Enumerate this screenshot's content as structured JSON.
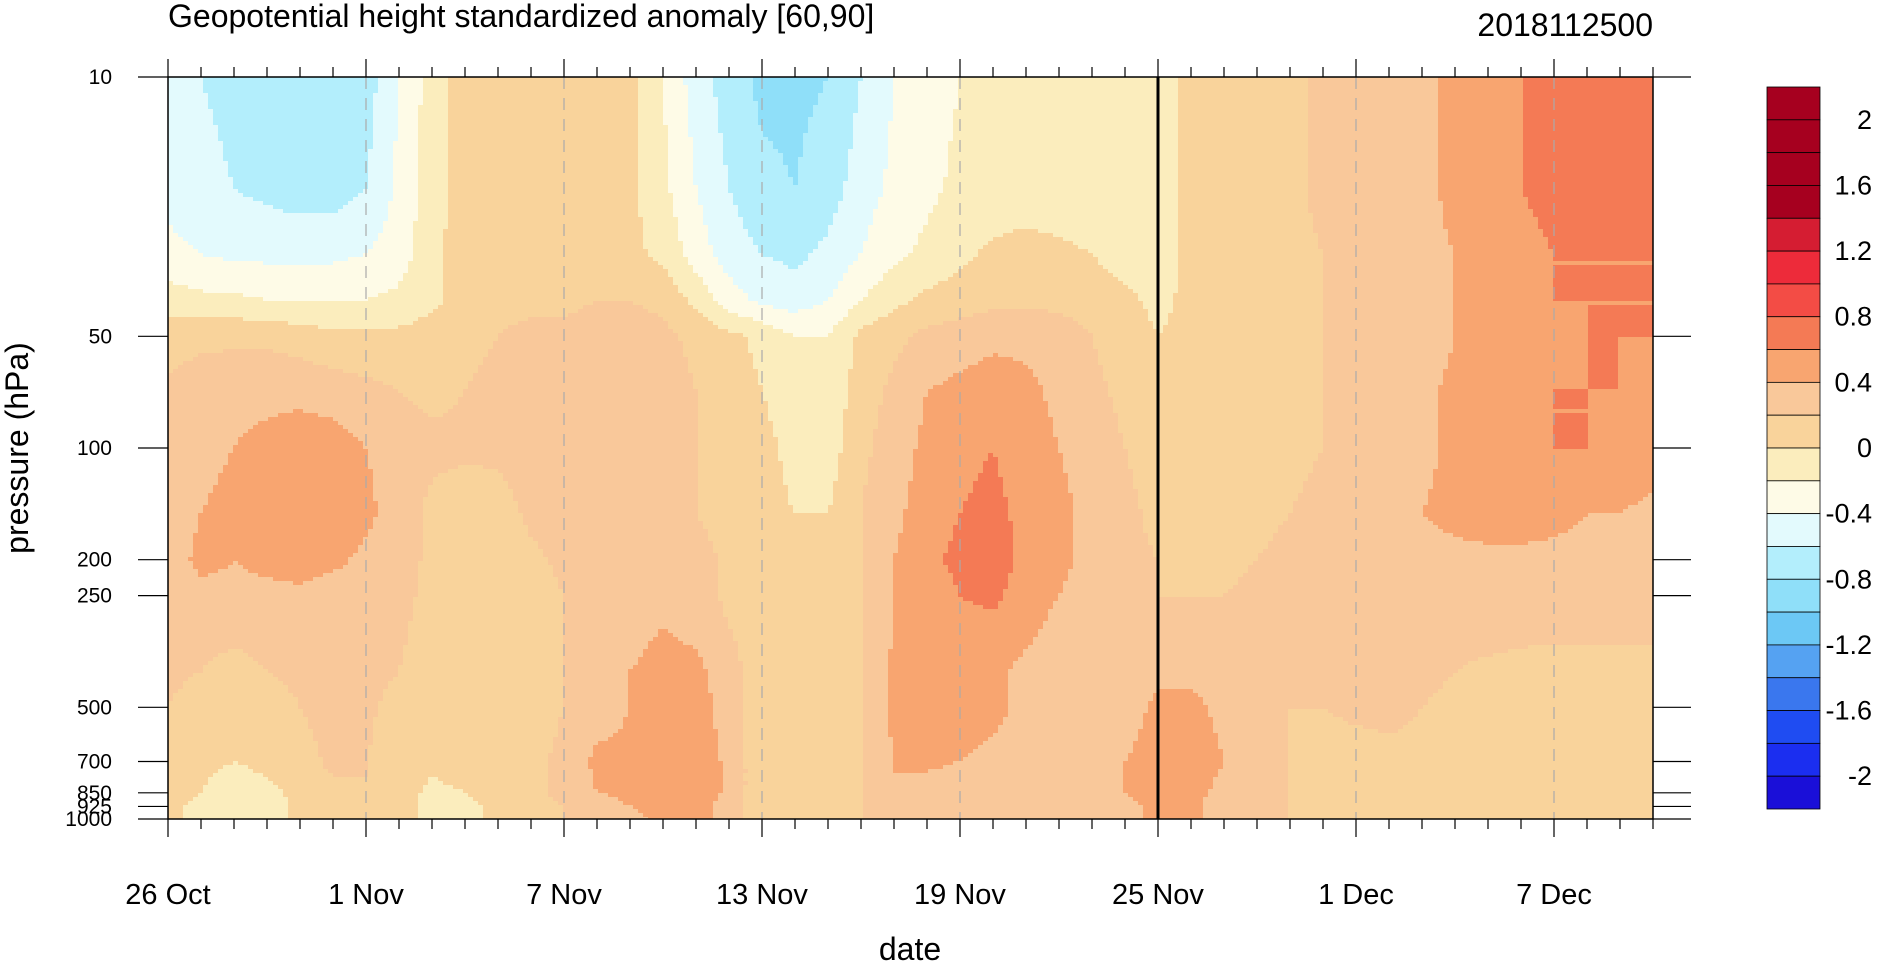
{
  "chart_data": {
    "type": "heatmap",
    "subtype": "filled-contour",
    "title": "Geopotential height standardized anomaly [60,90]",
    "date_label": "2018112500",
    "xlabel": "date",
    "ylabel": "pressure (hPa)",
    "x_tick_labels": [
      "26 Oct",
      "1 Nov",
      "7 Nov",
      "13 Nov",
      "19 Nov",
      "25 Nov",
      "1 Dec",
      "7 Dec"
    ],
    "x_tick_days": [
      0,
      6,
      12,
      18,
      24,
      30,
      36,
      42
    ],
    "x_range_days": [
      0,
      45
    ],
    "y_tick_labels": [
      "10",
      "50",
      "100",
      "200",
      "250",
      "500",
      "700",
      "850",
      "925",
      "1000"
    ],
    "y_tick_values": [
      10,
      50,
      100,
      200,
      250,
      500,
      700,
      850,
      925,
      1000
    ],
    "y_range": [
      10,
      1000
    ],
    "y_scale": "log",
    "current_date_day": 30,
    "colorbar": {
      "tick_labels": [
        "2",
        "1.6",
        "1.2",
        "0.8",
        "0.4",
        "0",
        "-0.4",
        "-0.8",
        "-1.2",
        "-1.6",
        "-2"
      ],
      "levels": [
        -2.2,
        -2.0,
        -1.8,
        -1.6,
        -1.4,
        -1.2,
        -1.0,
        -0.8,
        -0.6,
        -0.4,
        -0.2,
        0.0,
        0.2,
        0.4,
        0.6,
        0.8,
        1.0,
        1.2,
        1.4,
        1.6,
        1.8,
        2.0,
        2.2
      ],
      "colors": [
        "#1a0fd8",
        "#1b2ef0",
        "#1f4cf2",
        "#3a77ee",
        "#55a2f2",
        "#6cc8f5",
        "#8fdff9",
        "#b3eefc",
        "#e3fafd",
        "#fefbe7",
        "#fbedbd",
        "#f9d39b",
        "#f9c89a",
        "#f8a570",
        "#f47a55",
        "#f34c45",
        "#ed2b3a",
        "#d51d32",
        "#a6001f",
        "#a6001f",
        "#a6001f",
        "#a6001f"
      ]
    },
    "field_days": [
      0,
      1,
      2,
      3,
      4,
      5,
      6,
      7,
      8,
      9,
      10,
      11,
      12,
      13,
      14,
      15,
      16,
      17,
      18,
      19,
      20,
      21,
      22,
      23,
      24,
      25,
      26,
      27,
      28,
      29,
      30,
      31,
      32,
      33,
      34,
      35,
      36,
      37,
      38,
      39,
      40,
      41,
      42,
      43,
      44,
      45
    ],
    "field_levels": [
      10,
      20,
      30,
      40,
      50,
      70,
      100,
      150,
      200,
      250,
      300,
      400,
      500,
      700,
      850,
      925,
      1000
    ],
    "field": [
      [
        -0.5,
        -0.6,
        -0.65,
        -0.7,
        -0.75,
        -0.75,
        -0.7,
        -0.4,
        -0.1,
        0.1,
        0.1,
        0.05,
        0.05,
        0.05,
        0.05,
        -0.2,
        -0.5,
        -0.7,
        -0.85,
        -0.85,
        -0.8,
        -0.6,
        -0.4,
        -0.3,
        -0.2,
        -0.2,
        -0.2,
        -0.2,
        -0.2,
        -0.2,
        -0.1,
        0.05,
        0.05,
        0.1,
        0.15,
        0.25,
        0.3,
        0.3,
        0.35,
        0.45,
        0.55,
        0.6,
        0.65,
        0.65,
        0.7,
        0.7
      ],
      [
        -0.45,
        -0.55,
        -0.6,
        -0.65,
        -0.7,
        -0.7,
        -0.6,
        -0.35,
        -0.1,
        0.1,
        0.1,
        0.05,
        0.05,
        0.05,
        0.05,
        -0.15,
        -0.4,
        -0.6,
        -0.75,
        -0.8,
        -0.7,
        -0.5,
        -0.35,
        -0.25,
        -0.15,
        -0.15,
        -0.15,
        -0.15,
        -0.15,
        -0.15,
        -0.1,
        0.05,
        0.05,
        0.1,
        0.15,
        0.25,
        0.3,
        0.3,
        0.35,
        0.45,
        0.55,
        0.6,
        0.65,
        0.65,
        0.7,
        0.65
      ],
      [
        -0.35,
        -0.4,
        -0.45,
        -0.45,
        -0.45,
        -0.45,
        -0.4,
        -0.3,
        -0.05,
        0.1,
        0.1,
        0.1,
        0.05,
        0.05,
        0.05,
        -0.05,
        -0.3,
        -0.5,
        -0.6,
        -0.65,
        -0.55,
        -0.4,
        -0.25,
        -0.15,
        -0.05,
        0.05,
        0.1,
        0.05,
        0.0,
        -0.1,
        -0.1,
        0.05,
        0.05,
        0.1,
        0.15,
        0.2,
        0.25,
        0.3,
        0.35,
        0.4,
        0.5,
        0.55,
        0.6,
        0.6,
        0.6,
        0.6
      ],
      [
        -0.1,
        -0.15,
        -0.15,
        -0.2,
        -0.2,
        -0.2,
        -0.2,
        -0.15,
        -0.05,
        0.1,
        0.15,
        0.15,
        0.15,
        0.2,
        0.2,
        0.15,
        -0.05,
        -0.3,
        -0.45,
        -0.5,
        -0.4,
        -0.2,
        -0.05,
        0.05,
        0.1,
        0.15,
        0.15,
        0.15,
        0.1,
        0.05,
        -0.05,
        0.05,
        0.05,
        0.1,
        0.15,
        0.2,
        0.25,
        0.25,
        0.3,
        0.4,
        0.45,
        0.55,
        0.6,
        0.6,
        0.6,
        0.6
      ],
      [
        0.1,
        0.15,
        0.15,
        0.15,
        0.1,
        0.05,
        0.05,
        0.05,
        0.1,
        0.15,
        0.2,
        0.25,
        0.25,
        0.3,
        0.3,
        0.25,
        0.15,
        0.05,
        -0.05,
        -0.2,
        -0.2,
        0.05,
        0.15,
        0.25,
        0.3,
        0.35,
        0.35,
        0.3,
        0.2,
        0.1,
        0.0,
        0.05,
        0.05,
        0.1,
        0.15,
        0.2,
        0.25,
        0.25,
        0.3,
        0.4,
        0.45,
        0.5,
        0.55,
        0.6,
        0.6,
        0.6
      ],
      [
        0.25,
        0.3,
        0.35,
        0.35,
        0.35,
        0.3,
        0.25,
        0.2,
        0.15,
        0.2,
        0.25,
        0.3,
        0.3,
        0.3,
        0.3,
        0.3,
        0.2,
        0.1,
        0.0,
        -0.1,
        -0.15,
        0.1,
        0.25,
        0.4,
        0.45,
        0.5,
        0.45,
        0.35,
        0.25,
        0.15,
        0.05,
        0.05,
        0.05,
        0.1,
        0.15,
        0.2,
        0.25,
        0.3,
        0.35,
        0.45,
        0.5,
        0.55,
        0.6,
        0.6,
        0.6,
        0.55
      ],
      [
        0.3,
        0.35,
        0.4,
        0.45,
        0.5,
        0.5,
        0.4,
        0.3,
        0.25,
        0.25,
        0.25,
        0.3,
        0.3,
        0.3,
        0.3,
        0.3,
        0.2,
        0.1,
        0.05,
        -0.05,
        -0.1,
        0.15,
        0.3,
        0.45,
        0.55,
        0.6,
        0.5,
        0.4,
        0.3,
        0.2,
        0.1,
        0.05,
        0.05,
        0.1,
        0.15,
        0.2,
        0.25,
        0.3,
        0.35,
        0.45,
        0.5,
        0.55,
        0.6,
        0.6,
        0.55,
        0.5
      ],
      [
        0.3,
        0.4,
        0.45,
        0.5,
        0.55,
        0.55,
        0.45,
        0.3,
        0.15,
        0.05,
        0.1,
        0.25,
        0.3,
        0.3,
        0.3,
        0.25,
        0.2,
        0.1,
        0.05,
        0.0,
        0.0,
        0.2,
        0.35,
        0.5,
        0.6,
        0.65,
        0.55,
        0.45,
        0.35,
        0.25,
        0.15,
        0.1,
        0.1,
        0.15,
        0.2,
        0.25,
        0.3,
        0.35,
        0.4,
        0.45,
        0.5,
        0.5,
        0.45,
        0.4,
        0.4,
        0.35
      ],
      [
        0.3,
        0.45,
        0.4,
        0.45,
        0.5,
        0.45,
        0.35,
        0.3,
        0.15,
        0.05,
        0.05,
        0.15,
        0.25,
        0.3,
        0.3,
        0.35,
        0.3,
        0.15,
        0.05,
        0.0,
        0.0,
        0.2,
        0.4,
        0.55,
        0.65,
        0.7,
        0.55,
        0.45,
        0.35,
        0.25,
        0.2,
        0.15,
        0.15,
        0.2,
        0.25,
        0.3,
        0.3,
        0.35,
        0.35,
        0.35,
        0.35,
        0.35,
        0.35,
        0.35,
        0.35,
        0.3
      ],
      [
        0.3,
        0.35,
        0.35,
        0.35,
        0.35,
        0.3,
        0.3,
        0.3,
        0.1,
        0.05,
        0.05,
        0.1,
        0.2,
        0.3,
        0.3,
        0.35,
        0.3,
        0.15,
        0.05,
        0.0,
        0.0,
        0.2,
        0.4,
        0.5,
        0.6,
        0.65,
        0.5,
        0.4,
        0.3,
        0.25,
        0.2,
        0.2,
        0.2,
        0.25,
        0.25,
        0.3,
        0.3,
        0.3,
        0.3,
        0.3,
        0.3,
        0.3,
        0.3,
        0.3,
        0.3,
        0.3
      ],
      [
        0.3,
        0.3,
        0.3,
        0.3,
        0.3,
        0.3,
        0.3,
        0.25,
        0.1,
        0.05,
        0.05,
        0.1,
        0.2,
        0.3,
        0.35,
        0.4,
        0.35,
        0.2,
        0.05,
        0.0,
        0.0,
        0.2,
        0.4,
        0.5,
        0.55,
        0.55,
        0.45,
        0.35,
        0.3,
        0.25,
        0.25,
        0.25,
        0.25,
        0.25,
        0.3,
        0.3,
        0.3,
        0.3,
        0.3,
        0.3,
        0.3,
        0.3,
        0.3,
        0.3,
        0.3,
        0.3
      ],
      [
        0.25,
        0.2,
        0.1,
        0.2,
        0.25,
        0.3,
        0.3,
        0.2,
        0.05,
        0.05,
        0.05,
        0.1,
        0.2,
        0.3,
        0.4,
        0.45,
        0.45,
        0.3,
        0.05,
        0.0,
        0.0,
        0.2,
        0.45,
        0.5,
        0.5,
        0.45,
        0.35,
        0.3,
        0.25,
        0.3,
        0.35,
        0.35,
        0.3,
        0.25,
        0.25,
        0.25,
        0.3,
        0.3,
        0.25,
        0.2,
        0.15,
        0.1,
        0.05,
        0.05,
        0.05,
        0.05
      ],
      [
        0.2,
        0.1,
        0.05,
        0.1,
        0.2,
        0.3,
        0.25,
        0.1,
        0.05,
        0.05,
        0.05,
        0.1,
        0.2,
        0.3,
        0.4,
        0.5,
        0.5,
        0.3,
        0.05,
        0.0,
        0.0,
        0.2,
        0.45,
        0.5,
        0.5,
        0.45,
        0.35,
        0.3,
        0.25,
        0.3,
        0.45,
        0.45,
        0.35,
        0.25,
        0.2,
        0.2,
        0.25,
        0.25,
        0.2,
        0.15,
        0.1,
        0.05,
        0.05,
        0.05,
        0.05,
        0.05
      ],
      [
        0.15,
        0.05,
        0.0,
        0.05,
        0.1,
        0.25,
        0.2,
        0.1,
        0.05,
        0.1,
        0.1,
        0.15,
        0.25,
        0.45,
        0.45,
        0.5,
        0.55,
        0.35,
        0.05,
        0.0,
        0.0,
        0.2,
        0.4,
        0.45,
        0.4,
        0.35,
        0.35,
        0.3,
        0.25,
        0.4,
        0.5,
        0.5,
        0.4,
        0.25,
        0.2,
        0.1,
        0.1,
        0.15,
        0.15,
        0.15,
        0.1,
        0.05,
        0.05,
        0.05,
        0.05,
        0.05
      ],
      [
        0.1,
        0.0,
        -0.1,
        -0.05,
        0.05,
        0.15,
        0.2,
        0.1,
        -0.05,
        0.0,
        0.1,
        0.15,
        0.25,
        0.4,
        0.45,
        0.5,
        0.55,
        0.35,
        0.05,
        0.0,
        0.0,
        0.2,
        0.4,
        0.3,
        0.25,
        0.25,
        0.25,
        0.25,
        0.25,
        0.4,
        0.5,
        0.45,
        0.35,
        0.25,
        0.2,
        0.1,
        0.1,
        0.1,
        0.15,
        0.15,
        0.1,
        0.05,
        0.05,
        0.05,
        0.05,
        0.05
      ],
      [
        0.05,
        -0.05,
        -0.2,
        -0.1,
        0.05,
        0.1,
        0.15,
        0.1,
        -0.1,
        -0.05,
        0.05,
        0.15,
        0.2,
        0.3,
        0.4,
        0.45,
        0.5,
        0.3,
        0.05,
        0.0,
        0.0,
        0.2,
        0.3,
        0.25,
        0.25,
        0.25,
        0.25,
        0.25,
        0.2,
        0.35,
        0.45,
        0.45,
        0.3,
        0.25,
        0.2,
        0.1,
        0.1,
        0.1,
        0.15,
        0.15,
        0.1,
        0.05,
        0.05,
        0.05,
        0.05,
        0.05
      ],
      [
        0.05,
        -0.05,
        -0.2,
        -0.1,
        0.05,
        0.1,
        0.15,
        0.1,
        -0.1,
        -0.05,
        0.05,
        0.15,
        0.2,
        0.3,
        0.35,
        0.45,
        0.5,
        0.3,
        0.05,
        0.0,
        0.0,
        0.2,
        0.3,
        0.25,
        0.25,
        0.25,
        0.25,
        0.25,
        0.2,
        0.35,
        0.45,
        0.45,
        0.3,
        0.25,
        0.2,
        0.1,
        0.1,
        0.1,
        0.15,
        0.15,
        0.1,
        0.05,
        0.05,
        0.05,
        0.05,
        0.05
      ]
    ]
  }
}
